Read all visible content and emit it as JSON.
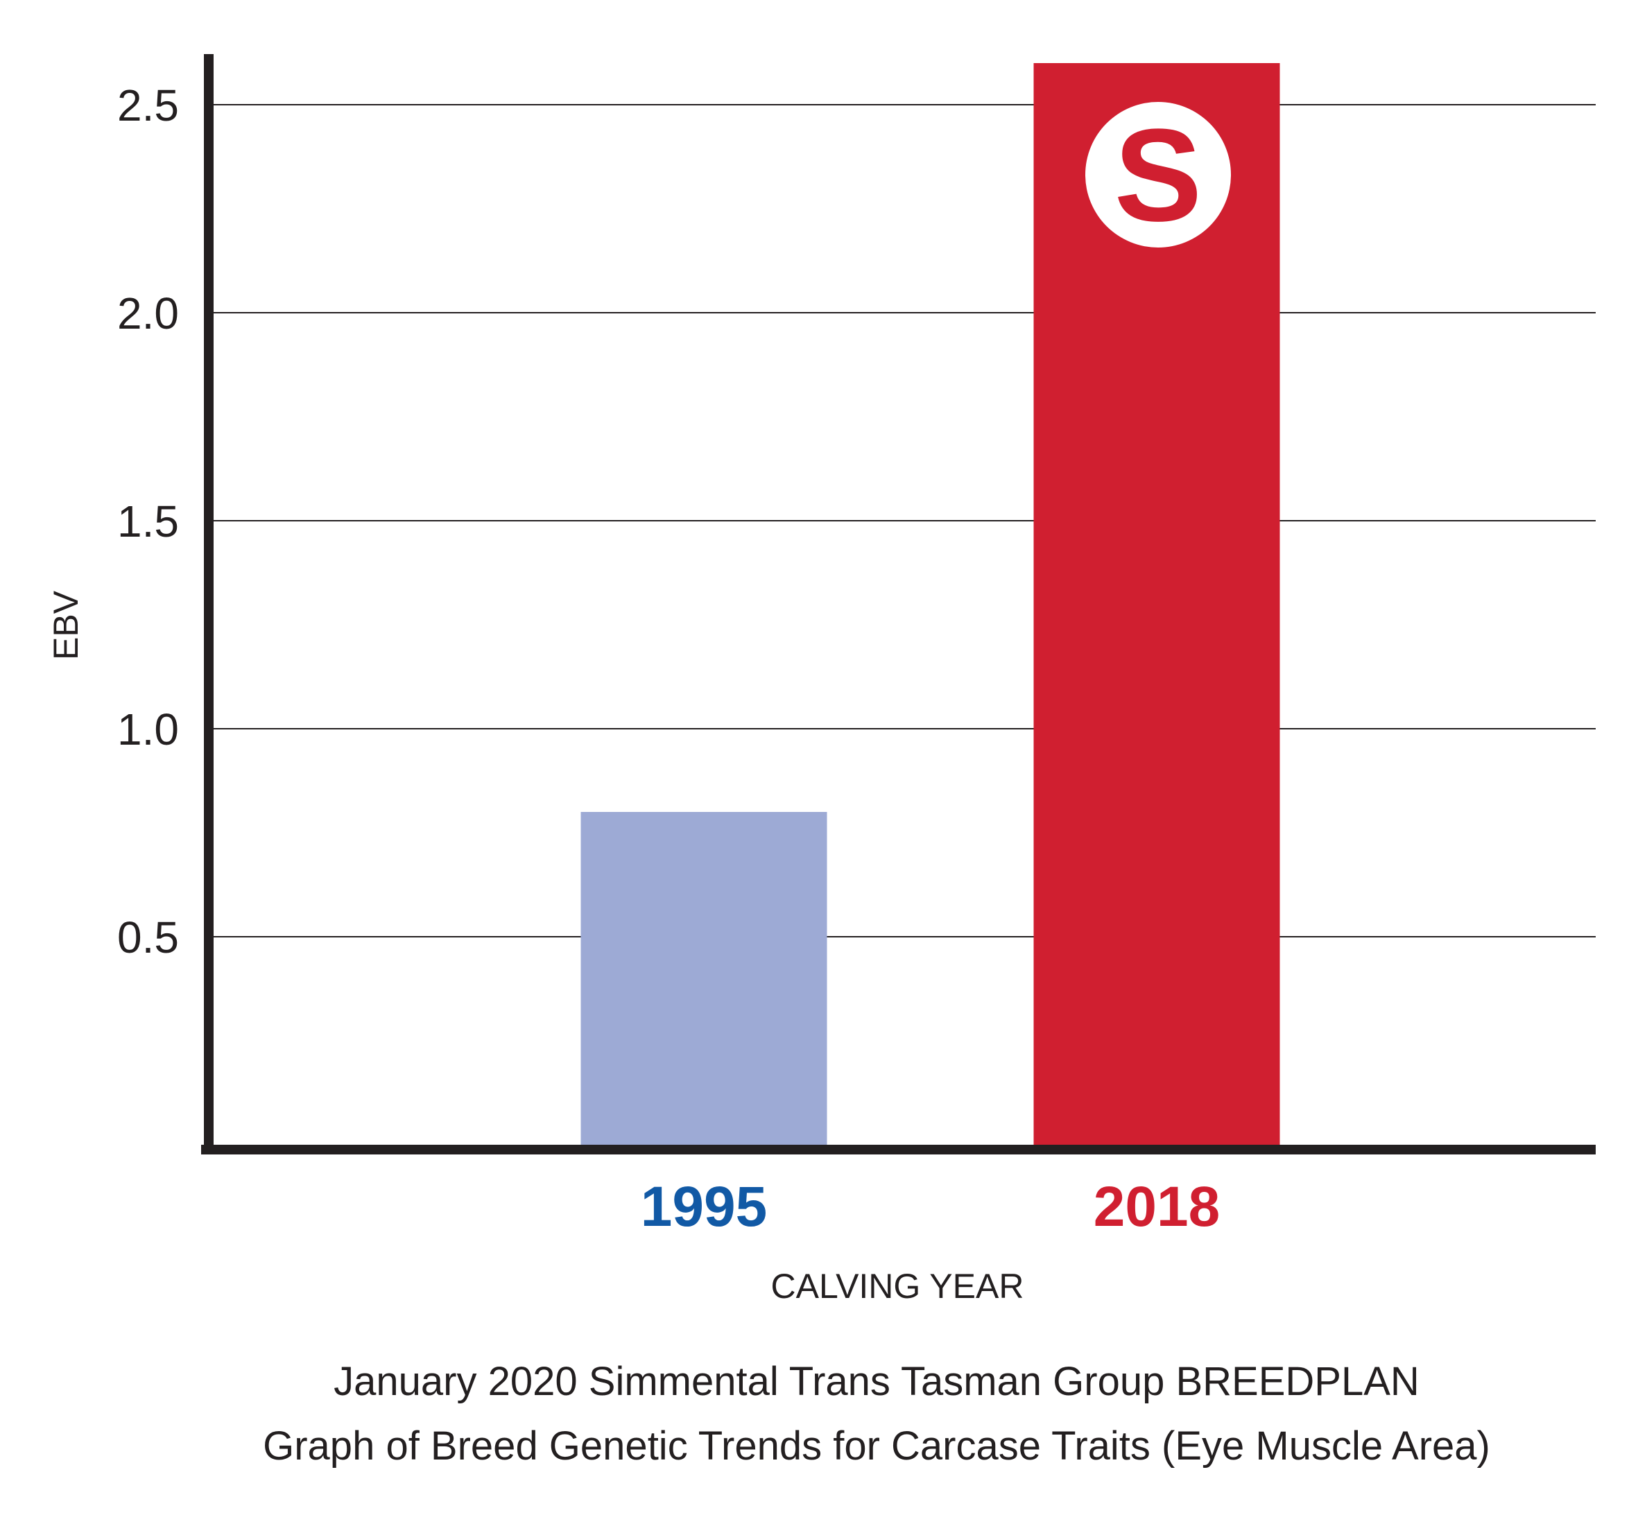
{
  "chart_data": {
    "type": "bar",
    "categories": [
      "1995",
      "2018"
    ],
    "values": [
      0.8,
      2.6
    ],
    "bar_colors": [
      "#9daad5",
      "#d01f30"
    ],
    "category_label_colors": [
      "#1159a5",
      "#d01f30"
    ],
    "ylabel": "EBV",
    "xlabel": "CALVING YEAR",
    "ylim": [
      0,
      2.65
    ],
    "yticks": [
      0.5,
      1.0,
      1.5,
      2.0,
      2.5
    ],
    "ytick_labels": [
      "0.5",
      "1.0",
      "1.5",
      "2.0",
      "2.5"
    ],
    "grid": true,
    "caption": [
      "January 2020 Simmental Trans Tasman Group BREEDPLAN",
      "Graph of Breed Genetic Trends for Carcase Traits (Eye Muscle Area)"
    ],
    "logo": {
      "letter": "S",
      "color": "#d01f30",
      "on_category": "2018"
    }
  }
}
